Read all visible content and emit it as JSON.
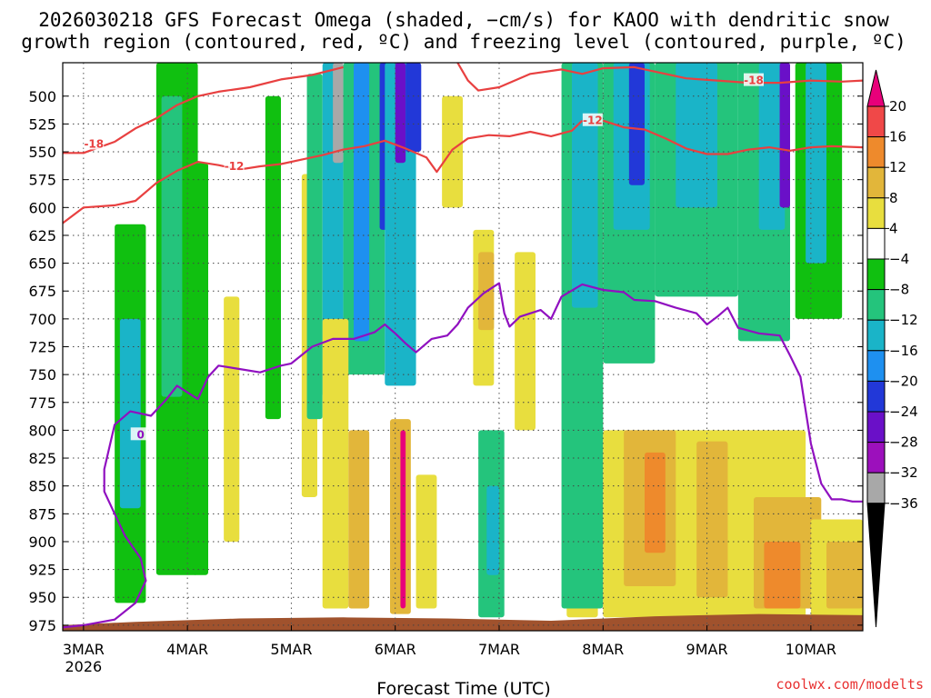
{
  "chart_data": {
    "type": "heatmap",
    "title_line1": "2026030218 GFS Forecast Omega (shaded, −cm/s) for KAOO with dendritic snow",
    "title_line2": "growth region (contoured, red, ºC) and freezing level (contoured, purple, ºC)",
    "xlabel": "Forecast Time (UTC)",
    "credit": "coolwx.com/modelts",
    "x_range": [
      -0.2,
      7.5
    ],
    "y_range_hpa": [
      470,
      980
    ],
    "x_ticks": [
      {
        "pos": 0,
        "label": "3MAR"
      },
      {
        "pos": 1,
        "label": "4MAR"
      },
      {
        "pos": 2,
        "label": "5MAR"
      },
      {
        "pos": 3,
        "label": "6MAR"
      },
      {
        "pos": 4,
        "label": "7MAR"
      },
      {
        "pos": 5,
        "label": "8MAR"
      },
      {
        "pos": 6,
        "label": "9MAR"
      },
      {
        "pos": 7,
        "label": "10MAR"
      }
    ],
    "x_year_label": "2026",
    "y_ticks": [
      500,
      525,
      550,
      575,
      600,
      625,
      650,
      675,
      700,
      725,
      750,
      775,
      800,
      825,
      850,
      875,
      900,
      925,
      950,
      975
    ],
    "colorbar": {
      "labels": [
        "20",
        "16",
        "12",
        "8",
        "4",
        "−4",
        "−8",
        "−12",
        "−16",
        "−20",
        "−24",
        "−28",
        "−32",
        "−36"
      ],
      "colors": [
        "#e8007a",
        "#f04848",
        "#ee8a2c",
        "#e2b63a",
        "#e8de3e",
        "#ffffff",
        "#10c010",
        "#24c47c",
        "#1ab4c8",
        "#1e90f0",
        "#2238d8",
        "#6a10c8",
        "#9c10bc",
        "#a8a8a8",
        "#000000"
      ]
    },
    "terrain": {
      "color": "#a0522d",
      "points": [
        [
          -0.2,
          975
        ],
        [
          0.5,
          972
        ],
        [
          1.5,
          969
        ],
        [
          2.5,
          968
        ],
        [
          3.5,
          969
        ],
        [
          4.5,
          971
        ],
        [
          5.5,
          967
        ],
        [
          6.5,
          965
        ],
        [
          7.5,
          966
        ]
      ]
    },
    "contours": [
      {
        "name": "dgz-minus18",
        "label": "-18",
        "color": "#e84040",
        "label_at": [
          0.1,
          543
        ],
        "points": [
          [
            -0.2,
            551
          ],
          [
            0,
            551
          ],
          [
            0.3,
            541
          ],
          [
            0.5,
            529
          ],
          [
            0.7,
            520
          ],
          [
            0.9,
            508
          ],
          [
            1.1,
            500
          ],
          [
            1.3,
            496
          ],
          [
            1.6,
            492
          ],
          [
            1.9,
            485
          ],
          [
            2.2,
            481
          ],
          [
            2.5,
            474
          ]
        ]
      },
      {
        "name": "dgz-minus12-left",
        "label": "-12",
        "color": "#e84040",
        "label_at": [
          1.45,
          563
        ],
        "points": [
          [
            -0.2,
            614
          ],
          [
            0,
            600
          ],
          [
            0.3,
            598
          ],
          [
            0.5,
            594
          ],
          [
            0.7,
            578
          ],
          [
            0.9,
            567
          ],
          [
            1.1,
            559
          ],
          [
            1.3,
            562
          ],
          [
            1.5,
            566
          ],
          [
            1.7,
            563
          ],
          [
            1.9,
            561
          ],
          [
            2.1,
            557
          ],
          [
            2.3,
            553
          ],
          [
            2.5,
            548
          ],
          [
            2.7,
            545
          ],
          [
            2.9,
            540
          ],
          [
            3.1,
            547
          ],
          [
            3.3,
            555
          ],
          [
            3.4,
            568
          ],
          [
            3.55,
            548
          ],
          [
            3.7,
            538
          ],
          [
            3.9,
            535
          ],
          [
            4.1,
            536
          ],
          [
            4.3,
            532
          ],
          [
            4.5,
            536
          ],
          [
            4.7,
            531
          ],
          [
            4.8,
            522
          ]
        ]
      },
      {
        "name": "dgz-minus12-top",
        "label": "-12",
        "color": "#e84040",
        "label_at": [
          4.9,
          522
        ],
        "points": [
          [
            3.6,
            470
          ],
          [
            3.7,
            486
          ],
          [
            3.8,
            495
          ],
          [
            4.0,
            492
          ],
          [
            4.3,
            480
          ],
          [
            4.6,
            476
          ],
          [
            4.8,
            480
          ],
          [
            5.0,
            475
          ],
          [
            5.3,
            474
          ],
          [
            5.5,
            478
          ],
          [
            5.8,
            484
          ],
          [
            6.1,
            486
          ],
          [
            6.4,
            488
          ],
          [
            6.7,
            488
          ],
          [
            7.0,
            486
          ],
          [
            7.3,
            487
          ],
          [
            7.5,
            486
          ]
        ]
      },
      {
        "name": "dgz-minus18-right",
        "label": "-18",
        "color": "#e84040",
        "label_at": [
          6.45,
          486
        ],
        "points": [
          [
            5.0,
            522
          ],
          [
            5.2,
            528
          ],
          [
            5.4,
            530
          ],
          [
            5.6,
            538
          ],
          [
            5.8,
            547
          ],
          [
            6.0,
            552
          ],
          [
            6.2,
            552
          ],
          [
            6.4,
            548
          ],
          [
            6.6,
            546
          ],
          [
            6.8,
            549
          ],
          [
            7.0,
            546
          ],
          [
            7.2,
            545
          ],
          [
            7.5,
            546
          ]
        ]
      },
      {
        "name": "freezing-level",
        "label": "0",
        "color": "#9010c0",
        "label_at": [
          0.55,
          804
        ],
        "points": [
          [
            -0.2,
            977
          ],
          [
            0,
            975
          ],
          [
            0.3,
            970
          ],
          [
            0.5,
            955
          ],
          [
            0.6,
            935
          ],
          [
            0.55,
            915
          ],
          [
            0.4,
            895
          ],
          [
            0.3,
            875
          ],
          [
            0.2,
            855
          ],
          [
            0.2,
            835
          ],
          [
            0.25,
            815
          ],
          [
            0.3,
            795
          ],
          [
            0.45,
            783
          ],
          [
            0.65,
            787
          ],
          [
            0.8,
            772
          ],
          [
            0.9,
            760
          ],
          [
            1.1,
            772
          ],
          [
            1.2,
            752
          ],
          [
            1.3,
            742
          ],
          [
            1.5,
            745
          ],
          [
            1.7,
            748
          ],
          [
            1.9,
            742
          ],
          [
            2.0,
            740
          ],
          [
            2.2,
            725
          ],
          [
            2.4,
            718
          ],
          [
            2.6,
            718
          ],
          [
            2.8,
            712
          ],
          [
            2.9,
            705
          ],
          [
            3.0,
            713
          ],
          [
            3.1,
            722
          ],
          [
            3.2,
            730
          ],
          [
            3.35,
            718
          ],
          [
            3.5,
            715
          ],
          [
            3.6,
            705
          ],
          [
            3.7,
            690
          ],
          [
            3.85,
            677
          ],
          [
            4.0,
            668
          ],
          [
            4.05,
            695
          ],
          [
            4.1,
            707
          ],
          [
            4.2,
            698
          ],
          [
            4.4,
            692
          ],
          [
            4.5,
            700
          ],
          [
            4.6,
            680
          ],
          [
            4.8,
            669
          ],
          [
            5.0,
            674
          ],
          [
            5.2,
            676
          ],
          [
            5.3,
            683
          ],
          [
            5.5,
            684
          ],
          [
            5.7,
            690
          ],
          [
            5.9,
            695
          ],
          [
            6.0,
            705
          ],
          [
            6.1,
            698
          ],
          [
            6.2,
            690
          ],
          [
            6.3,
            708
          ],
          [
            6.5,
            713
          ],
          [
            6.7,
            715
          ],
          [
            6.8,
            733
          ],
          [
            6.9,
            752
          ],
          [
            6.95,
            782
          ],
          [
            7.0,
            812
          ],
          [
            7.1,
            848
          ],
          [
            7.2,
            862
          ],
          [
            7.3,
            862
          ],
          [
            7.4,
            864
          ],
          [
            7.5,
            864
          ]
        ]
      }
    ],
    "contour_values": [
      "-18",
      "-12",
      "0"
    ],
    "omega_features": [
      {
        "x": [
          0.3,
          0.6
        ],
        "y": [
          615,
          955
        ],
        "v": -8
      },
      {
        "x": [
          0.35,
          0.55
        ],
        "y": [
          700,
          870
        ],
        "v": -14
      },
      {
        "x": [
          0.7,
          1.1
        ],
        "y": [
          470,
          930
        ],
        "v": -7
      },
      {
        "x": [
          0.75,
          0.95
        ],
        "y": [
          500,
          770
        ],
        "v": -12
      },
      {
        "x": [
          1.05,
          1.2
        ],
        "y": [
          560,
          930
        ],
        "v": -6
      },
      {
        "x": [
          1.35,
          1.5
        ],
        "y": [
          680,
          900
        ],
        "v": 6
      },
      {
        "x": [
          1.75,
          1.9
        ],
        "y": [
          500,
          790
        ],
        "v": -7
      },
      {
        "x": [
          2.1,
          2.25
        ],
        "y": [
          570,
          860
        ],
        "v": 5
      },
      {
        "x": [
          2.15,
          2.3
        ],
        "y": [
          480,
          790
        ],
        "v": -10
      },
      {
        "x": [
          2.3,
          2.5
        ],
        "y": [
          470,
          770
        ],
        "v": -14
      },
      {
        "x": [
          2.4,
          2.5
        ],
        "y": [
          470,
          560
        ],
        "v": -36
      },
      {
        "x": [
          2.5,
          2.9
        ],
        "y": [
          470,
          750
        ],
        "v": -9
      },
      {
        "x": [
          2.6,
          2.75
        ],
        "y": [
          470,
          720
        ],
        "v": -17
      },
      {
        "x": [
          2.85,
          3.0
        ],
        "y": [
          470,
          620
        ],
        "v": -22
      },
      {
        "x": [
          2.9,
          3.2
        ],
        "y": [
          470,
          760
        ],
        "v": -15
      },
      {
        "x": [
          3.0,
          3.1
        ],
        "y": [
          470,
          560
        ],
        "v": -26
      },
      {
        "x": [
          3.1,
          3.25
        ],
        "y": [
          470,
          550
        ],
        "v": -22
      },
      {
        "x": [
          2.3,
          2.55
        ],
        "y": [
          700,
          960
        ],
        "v": 6
      },
      {
        "x": [
          2.55,
          2.75
        ],
        "y": [
          800,
          960
        ],
        "v": 9
      },
      {
        "x": [
          2.95,
          3.15
        ],
        "y": [
          790,
          965
        ],
        "v": 8
      },
      {
        "x": [
          3.05,
          3.1
        ],
        "y": [
          800,
          960
        ],
        "v": 20
      },
      {
        "x": [
          3.2,
          3.4
        ],
        "y": [
          840,
          960
        ],
        "v": 5
      },
      {
        "x": [
          3.45,
          3.65
        ],
        "y": [
          500,
          600
        ],
        "v": 5
      },
      {
        "x": [
          3.75,
          3.95
        ],
        "y": [
          620,
          760
        ],
        "v": 7
      },
      {
        "x": [
          3.8,
          3.95
        ],
        "y": [
          640,
          710
        ],
        "v": 10
      },
      {
        "x": [
          3.8,
          4.05
        ],
        "y": [
          800,
          968
        ],
        "v": -9
      },
      {
        "x": [
          3.88,
          4.0
        ],
        "y": [
          850,
          930
        ],
        "v": -15
      },
      {
        "x": [
          4.15,
          4.35
        ],
        "y": [
          640,
          800
        ],
        "v": 5
      },
      {
        "x": [
          4.65,
          4.95
        ],
        "y": [
          600,
          968
        ],
        "v": 5
      },
      {
        "x": [
          4.6,
          5.0
        ],
        "y": [
          470,
          960
        ],
        "v": -9
      },
      {
        "x": [
          4.7,
          4.95
        ],
        "y": [
          470,
          690
        ],
        "v": -14
      },
      {
        "x": [
          5.0,
          5.5
        ],
        "y": [
          470,
          740
        ],
        "v": -12
      },
      {
        "x": [
          5.1,
          5.45
        ],
        "y": [
          470,
          620
        ],
        "v": -16
      },
      {
        "x": [
          5.25,
          5.4
        ],
        "y": [
          470,
          580
        ],
        "v": -22
      },
      {
        "x": [
          5.5,
          6.3
        ],
        "y": [
          470,
          680
        ],
        "v": -10
      },
      {
        "x": [
          5.7,
          6.1
        ],
        "y": [
          470,
          600
        ],
        "v": -14
      },
      {
        "x": [
          6.3,
          6.8
        ],
        "y": [
          470,
          720
        ],
        "v": -12
      },
      {
        "x": [
          6.5,
          6.75
        ],
        "y": [
          470,
          620
        ],
        "v": -16
      },
      {
        "x": [
          6.7,
          6.8
        ],
        "y": [
          470,
          600
        ],
        "v": -26
      },
      {
        "x": [
          6.85,
          7.3
        ],
        "y": [
          470,
          700
        ],
        "v": -8
      },
      {
        "x": [
          6.95,
          7.15
        ],
        "y": [
          470,
          650
        ],
        "v": -13
      },
      {
        "x": [
          5.0,
          6.95
        ],
        "y": [
          800,
          968
        ],
        "v": 6
      },
      {
        "x": [
          5.2,
          5.7
        ],
        "y": [
          800,
          940
        ],
        "v": 10
      },
      {
        "x": [
          5.4,
          5.6
        ],
        "y": [
          820,
          910
        ],
        "v": 14
      },
      {
        "x": [
          5.9,
          6.2
        ],
        "y": [
          810,
          950
        ],
        "v": 10
      },
      {
        "x": [
          6.45,
          7.1
        ],
        "y": [
          860,
          960
        ],
        "v": 10
      },
      {
        "x": [
          6.55,
          6.9
        ],
        "y": [
          900,
          960
        ],
        "v": 13
      },
      {
        "x": [
          7.0,
          7.5
        ],
        "y": [
          880,
          968
        ],
        "v": 5
      },
      {
        "x": [
          7.15,
          7.5
        ],
        "y": [
          900,
          960
        ],
        "v": 9
      }
    ]
  }
}
